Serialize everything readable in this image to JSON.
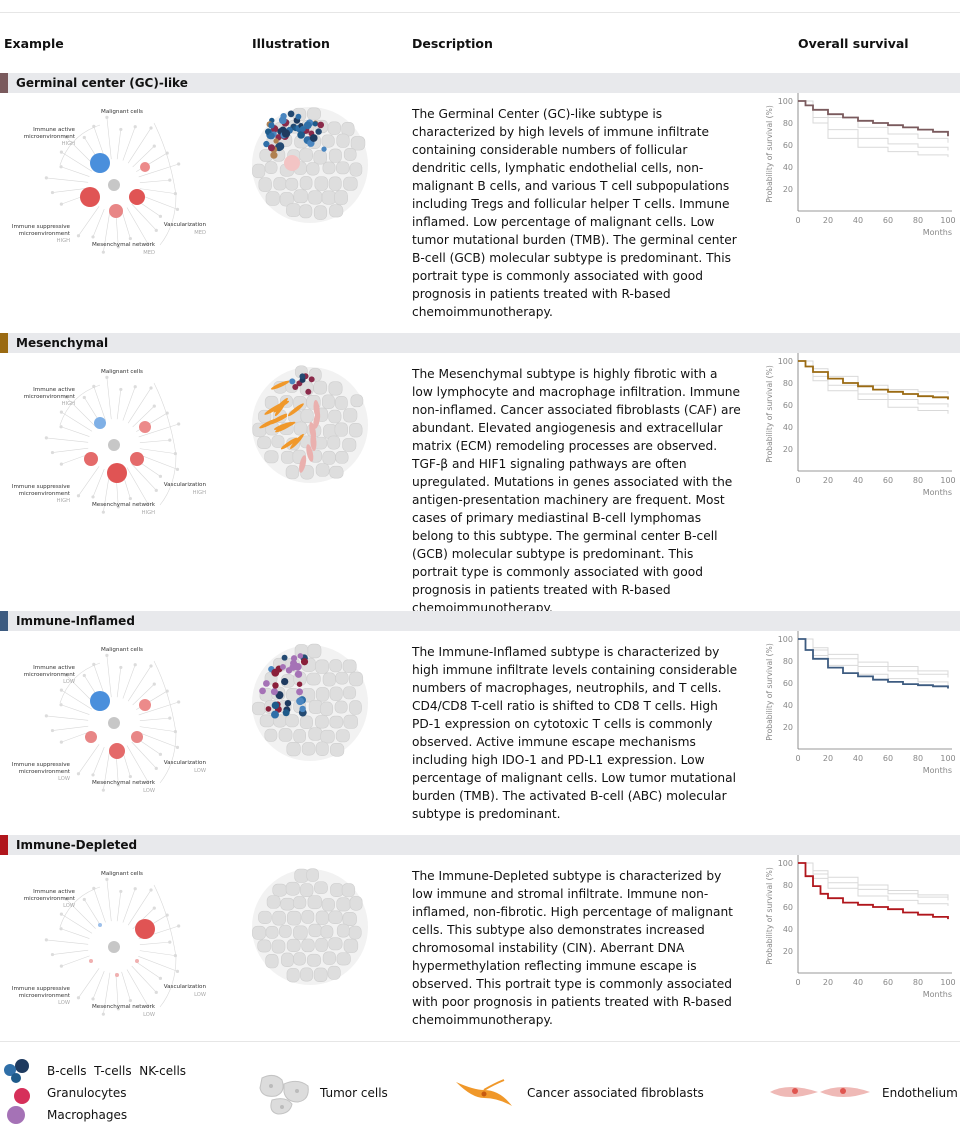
{
  "columns": {
    "example": "Example",
    "illustration": "Illustration",
    "description": "Description",
    "survival": "Overall survival"
  },
  "diagram_labels": {
    "malignant": "Malignant cells",
    "immune_active": [
      "Immune active",
      "microenvironment"
    ],
    "immune_suppressive": [
      "Immune suppressive",
      "microenvironment"
    ],
    "vascularization": "Vascularization",
    "mesenchymal": "Mesenchymal network"
  },
  "survival_axis": {
    "ylabel": "Probability of survival (%)",
    "xlabel": "Months",
    "yticks": [
      "100",
      "80",
      "60",
      "40",
      "20"
    ],
    "xticks": [
      "0",
      "20",
      "40",
      "60",
      "80",
      "100"
    ]
  },
  "sections": [
    {
      "title": "Germinal center (GC)-like",
      "color": "#7a5a5d",
      "levels": {
        "immune_active": "HIGH",
        "immune_suppressive": "HIGH",
        "vascularization": "MED",
        "mesenchymal": "MED"
      },
      "description": "The Germinal Center (GC)-like subtype is characterized by high levels of immune infiltrate containing considerable numbers of follicular dendritic cells, lymphatic endothelial cells, non-malignant B cells, and various T cell subpopulations including Tregs and follicular helper T cells. Immune inflamed. Low percentage of malignant cells. Low tumor mutational burden (TMB). The germinal center B-cell (GCB) molecular subtype is predominant. This portrait type is commonly associated with good prognosis in patients treated with R-based chemoimmunotherapy."
    },
    {
      "title": "Mesenchymal",
      "color": "#9a6a12",
      "levels": {
        "immune_active": "HIGH",
        "immune_suppressive": "HIGH",
        "vascularization": "HIGH",
        "mesenchymal": "HIGH"
      },
      "description": "The Mesenchymal subtype is highly fibrotic with a low lymphocyte and macrophage infiltration. Immune non-inflamed. Cancer associated fibroblasts (CAF) are abundant. Elevated angiogenesis and extracellular matrix (ECM) remodeling processes are observed. TGF-β and HIF1 signaling pathways are often upregulated. Mutations in genes associated with the antigen-presentation machinery are frequent. Most cases of primary mediastinal B-cell lymphomas belong to this subtype. The germinal center B-cell (GCB) molecular subtype is predominant. This portrait type is commonly associated with good prognosis in patients treated with R-based chemoimmunotherapy."
    },
    {
      "title": "Immune-Inflamed",
      "color": "#3d5b80",
      "levels": {
        "immune_active": "LOW",
        "immune_suppressive": "LOW",
        "vascularization": "LOW",
        "mesenchymal": "LOW"
      },
      "description": "The Immune-Inflamed subtype is characterized by high immune infiltrate levels containing considerable numbers of macrophages, neutrophils, and T cells. CD4/CD8 T-cell ratio is shifted to CD8 T cells. High PD-1 expression on cytotoxic T cells is commonly observed. Active immune escape mechanisms including high IDO-1 and PD-L1 expression. Low percentage of malignant cells. Low tumor mutational burden (TMB). The activated B-cell (ABC) molecular subtype is predominant."
    },
    {
      "title": "Immune-Depleted",
      "color": "#b0161c",
      "levels": {
        "immune_active": "LOW",
        "immune_suppressive": "LOW",
        "vascularization": "LOW",
        "mesenchymal": "LOW"
      },
      "description": "The Immune-Depleted subtype is characterized by low immune and stromal infiltrate. Immune non-inflamed, non-fibrotic. High percentage of malignant cells. This subtype also demonstrates increased chromosomal instability (CIN). Aberrant DNA hypermethylation reflecting immune escape is observed. This portrait type is commonly associated with poor prognosis in patients treated with R-based chemoimmunotherapy."
    }
  ],
  "chart_data": [
    {
      "type": "line",
      "xlabel": "Months",
      "ylabel": "Probability of survival (%)",
      "xlim": [
        0,
        100
      ],
      "ylim": [
        0,
        100
      ],
      "series": [
        {
          "color": "#7a5a5d",
          "x": [
            0,
            5,
            10,
            20,
            30,
            40,
            50,
            60,
            70,
            80,
            90,
            100
          ],
          "y": [
            100,
            96,
            92,
            88,
            85,
            82,
            80,
            78,
            76,
            74,
            72,
            68
          ]
        },
        {
          "color": "#d9d9d9",
          "x": [
            0,
            10,
            20,
            40,
            60,
            80,
            100
          ],
          "y": [
            100,
            92,
            85,
            76,
            70,
            66,
            62
          ]
        },
        {
          "color": "#d9d9d9",
          "x": [
            0,
            10,
            20,
            40,
            60,
            80,
            100
          ],
          "y": [
            100,
            85,
            74,
            66,
            61,
            58,
            55
          ]
        },
        {
          "color": "#d9d9d9",
          "x": [
            0,
            10,
            20,
            40,
            60,
            80,
            100
          ],
          "y": [
            100,
            80,
            66,
            58,
            54,
            51,
            49
          ]
        }
      ]
    },
    {
      "type": "line",
      "xlabel": "Months",
      "ylabel": "Probability of survival (%)",
      "xlim": [
        0,
        100
      ],
      "ylim": [
        0,
        100
      ],
      "series": [
        {
          "color": "#9a6a12",
          "x": [
            0,
            5,
            10,
            20,
            30,
            40,
            50,
            60,
            70,
            80,
            90,
            100
          ],
          "y": [
            100,
            95,
            90,
            84,
            80,
            77,
            74,
            72,
            70,
            68,
            67,
            65
          ]
        },
        {
          "color": "#d9d9d9",
          "x": [
            0,
            10,
            20,
            40,
            60,
            80,
            100
          ],
          "y": [
            100,
            93,
            86,
            78,
            74,
            72,
            70
          ]
        },
        {
          "color": "#d9d9d9",
          "x": [
            0,
            10,
            20,
            40,
            60,
            80,
            100
          ],
          "y": [
            100,
            86,
            78,
            70,
            65,
            61,
            58
          ]
        },
        {
          "color": "#d9d9d9",
          "x": [
            0,
            10,
            20,
            40,
            60,
            80,
            100
          ],
          "y": [
            100,
            82,
            73,
            65,
            58,
            55,
            52
          ]
        }
      ]
    },
    {
      "type": "line",
      "xlabel": "Months",
      "ylabel": "Probability of survival (%)",
      "xlim": [
        0,
        100
      ],
      "ylim": [
        0,
        100
      ],
      "series": [
        {
          "color": "#3d5b80",
          "x": [
            0,
            5,
            10,
            20,
            30,
            40,
            50,
            60,
            70,
            80,
            90,
            100
          ],
          "y": [
            100,
            90,
            82,
            74,
            69,
            66,
            63,
            61,
            59,
            58,
            57,
            55
          ]
        },
        {
          "color": "#d9d9d9",
          "x": [
            0,
            10,
            20,
            40,
            60,
            80,
            100
          ],
          "y": [
            100,
            92,
            86,
            79,
            75,
            71,
            67
          ]
        },
        {
          "color": "#d9d9d9",
          "x": [
            0,
            10,
            20,
            40,
            60,
            80,
            100
          ],
          "y": [
            100,
            90,
            82,
            75,
            71,
            68,
            65
          ]
        },
        {
          "color": "#d9d9d9",
          "x": [
            0,
            10,
            20,
            40,
            60,
            80,
            100
          ],
          "y": [
            100,
            85,
            76,
            68,
            64,
            61,
            58
          ]
        }
      ]
    },
    {
      "type": "line",
      "xlabel": "Months",
      "ylabel": "Probability of survival (%)",
      "xlim": [
        0,
        100
      ],
      "ylim": [
        0,
        100
      ],
      "series": [
        {
          "color": "#b0161c",
          "x": [
            0,
            5,
            10,
            15,
            20,
            30,
            40,
            50,
            60,
            70,
            80,
            90,
            100
          ],
          "y": [
            100,
            88,
            79,
            72,
            68,
            64,
            62,
            60,
            58,
            55,
            53,
            51,
            49
          ]
        },
        {
          "color": "#d9d9d9",
          "x": [
            0,
            10,
            20,
            40,
            60,
            80,
            100
          ],
          "y": [
            100,
            93,
            87,
            80,
            75,
            71,
            68
          ]
        },
        {
          "color": "#d9d9d9",
          "x": [
            0,
            10,
            20,
            40,
            60,
            80,
            100
          ],
          "y": [
            100,
            90,
            82,
            76,
            72,
            69,
            66
          ]
        },
        {
          "color": "#d9d9d9",
          "x": [
            0,
            10,
            20,
            40,
            60,
            80,
            100
          ],
          "y": [
            100,
            86,
            77,
            70,
            66,
            63,
            61
          ]
        }
      ]
    }
  ],
  "legend": {
    "immune_line1": [
      "B-cells",
      "T-cells",
      "NK-cells"
    ],
    "granulocytes": "Granulocytes",
    "macrophages": "Macrophages",
    "tumor": "Tumor cells",
    "caf": "Cancer associated fibroblasts",
    "endothelium": "Endothelium"
  }
}
